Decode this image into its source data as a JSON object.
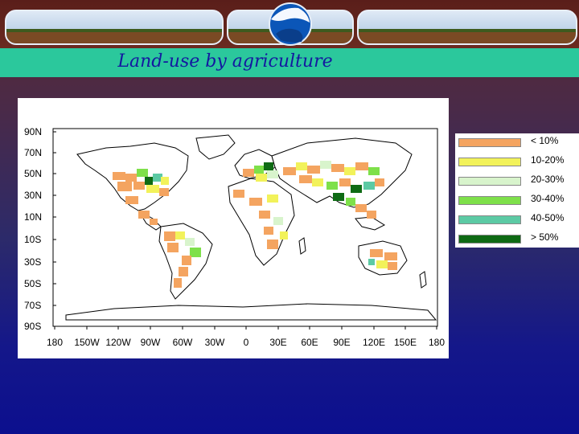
{
  "title": "Land-use by agriculture",
  "map": {
    "lat_labels": [
      "90N",
      "70N",
      "50N",
      "30N",
      "10N",
      "10S",
      "30S",
      "50S",
      "70S",
      "90S"
    ],
    "lon_labels": [
      "180",
      "150W",
      "120W",
      "90W",
      "60W",
      "30W",
      "0",
      "30E",
      "60E",
      "90E",
      "120E",
      "150E",
      "180"
    ]
  },
  "legend": [
    {
      "label": "< 10%",
      "color": "#f4a460"
    },
    {
      "label": "10-20%",
      "color": "#f2f25a"
    },
    {
      "label": "20-30%",
      "color": "#d8f4cc"
    },
    {
      "label": "30-40%",
      "color": "#7ee04a"
    },
    {
      "label": "40-50%",
      "color": "#5ccaa4"
    },
    {
      "label": "> 50%",
      "color": "#0e6a14"
    }
  ],
  "colors": {
    "background_top": "#5a2a32",
    "background_bottom": "#0c0f8e",
    "title_bar": "#2bc89c",
    "title_text": "#1418a0"
  }
}
